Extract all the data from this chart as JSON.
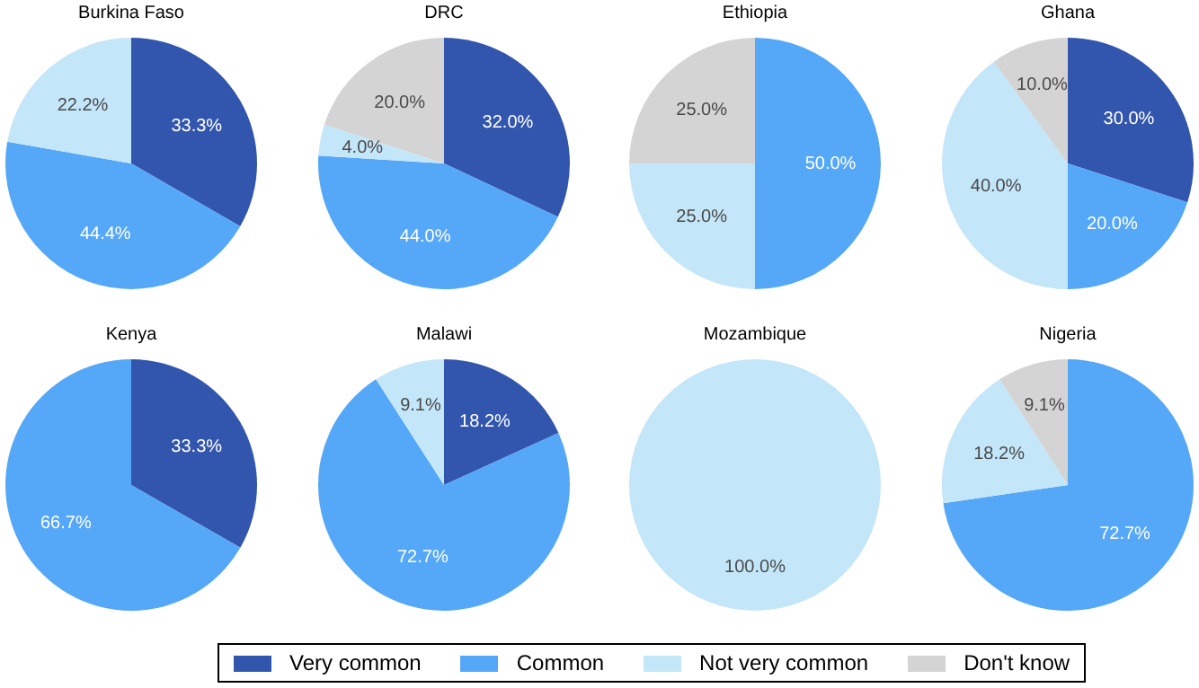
{
  "chart_data": [
    {
      "type": "pie",
      "title": "Burkina Faso",
      "categories": [
        "Very common",
        "Common",
        "Not very common",
        "Don't know"
      ],
      "values": [
        33.3,
        44.4,
        22.2,
        null
      ],
      "value_labels": [
        "33.3%",
        "44.4%",
        "22.2%",
        null
      ],
      "colors": [
        "#3256ad",
        "#55a7f7",
        "#c4e6f9",
        "#d4d4d4"
      ],
      "legend": "bottom"
    },
    {
      "type": "pie",
      "title": "DRC",
      "categories": [
        null,
        null,
        null,
        null
      ],
      "values": [
        32.0,
        44.0,
        4.0,
        20.0
      ],
      "value_labels": [
        "32.0%",
        "44.0%",
        "4.0%",
        "20.0%"
      ],
      "colors": [
        "#3256ad",
        "#55a7f7",
        "#c4e6f9",
        "#d4d4d4"
      ]
    },
    {
      "type": "pie",
      "title": "Ethiopia",
      "categories": [
        null,
        null,
        null,
        null
      ],
      "values": [
        null,
        50.0,
        25.0,
        25.0
      ],
      "value_labels": [
        null,
        "50.0%",
        "25.0%",
        "25.0%"
      ],
      "colors": [
        "#3256ad",
        "#55a7f7",
        "#c4e6f9",
        "#d4d4d4"
      ]
    },
    {
      "type": "pie",
      "title": "Ghana",
      "categories": [
        null,
        null,
        null,
        null
      ],
      "values": [
        30.0,
        20.0,
        40.0,
        10.0
      ],
      "value_labels": [
        "30.0%",
        "20.0%",
        "40.0%",
        "10.0%"
      ],
      "colors": [
        "#3256ad",
        "#55a7f7",
        "#c4e6f9",
        "#d4d4d4"
      ]
    },
    {
      "type": "pie",
      "title": "Kenya",
      "categories": [
        null,
        null,
        null,
        null
      ],
      "values": [
        33.3,
        66.7,
        null,
        null
      ],
      "value_labels": [
        "33.3%",
        "66.7%",
        null,
        null
      ],
      "colors": [
        "#3256ad",
        "#55a7f7",
        "#c4e6f9",
        "#d4d4d4"
      ]
    },
    {
      "type": "pie",
      "title": "Malawi",
      "categories": [
        null,
        null,
        null,
        null
      ],
      "values": [
        18.2,
        72.7,
        9.1,
        null
      ],
      "value_labels": [
        "18.2%",
        "72.7%",
        "9.1%",
        null
      ],
      "colors": [
        "#3256ad",
        "#55a7f7",
        "#c4e6f9",
        "#d4d4d4"
      ]
    },
    {
      "type": "pie",
      "title": "Mozambique",
      "categories": [
        null,
        null,
        null,
        null
      ],
      "values": [
        null,
        null,
        100.0,
        null
      ],
      "value_labels": [
        null,
        null,
        "100.0%",
        null
      ],
      "colors": [
        "#3256ad",
        "#55a7f7",
        "#c4e6f9",
        "#d4d4d4"
      ]
    },
    {
      "type": "pie",
      "title": "Nigeria",
      "categories": [
        null,
        null,
        null,
        null
      ],
      "values": [
        null,
        72.7,
        18.2,
        9.1
      ],
      "value_labels": [
        null,
        "72.7%",
        "18.2%",
        "9.1%"
      ],
      "colors": [
        "#3256ad",
        "#55a7f7",
        "#c4e6f9",
        "#d4d4d4"
      ]
    }
  ]
}
